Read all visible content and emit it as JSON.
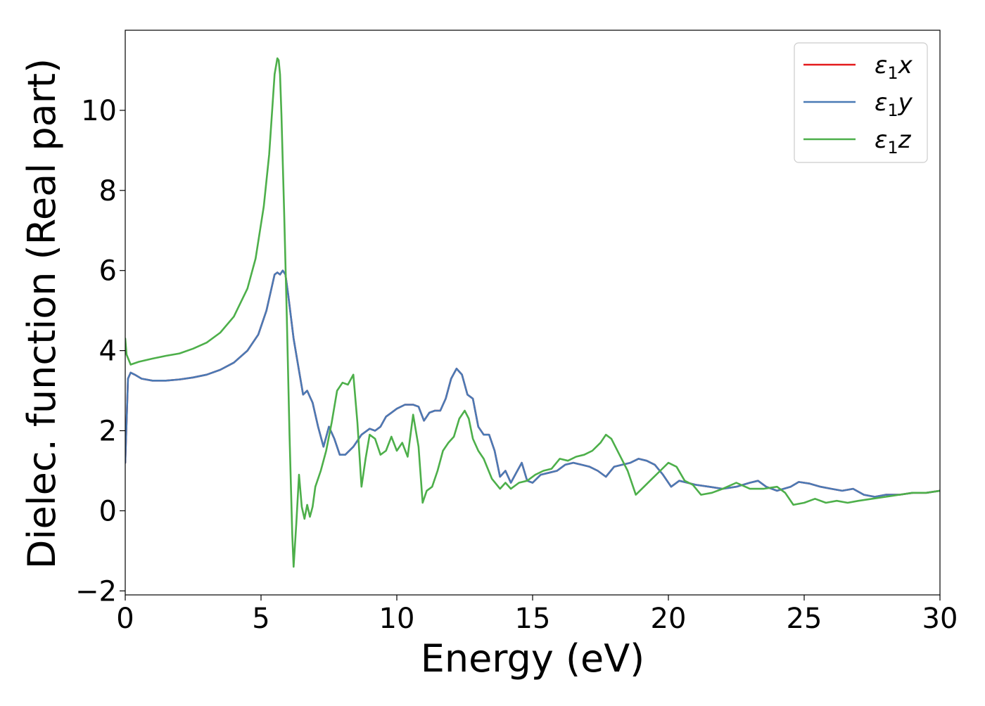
{
  "chart_data": {
    "type": "line",
    "xlabel": "Energy (eV)",
    "ylabel": "Dielec. function (Real part)",
    "xlim": [
      0,
      30
    ],
    "ylim": [
      -2.1,
      12
    ],
    "grid": false,
    "legend_position": "top-right",
    "x_ticks": [
      0,
      5,
      10,
      15,
      20,
      25,
      30
    ],
    "x_tick_labels": [
      "0",
      "5",
      "10",
      "15",
      "20",
      "25",
      "30"
    ],
    "y_ticks": [
      -2,
      0,
      2,
      4,
      6,
      8,
      10
    ],
    "y_tick_labels": [
      "−2",
      "0",
      "2",
      "4",
      "6",
      "8",
      "10"
    ],
    "series": [
      {
        "name": "ε₁x",
        "legend": {
          "base": "ε",
          "sub": "1",
          "suffix": "x"
        },
        "color": "#e41a1c",
        "x": [
          0.0,
          0.1,
          0.2,
          0.35,
          0.6,
          1.0,
          1.5,
          2.0,
          2.5,
          3.0,
          3.5,
          4.0,
          4.5,
          4.9,
          5.2,
          5.5,
          5.6,
          5.7,
          5.8,
          5.9,
          6.0,
          6.2,
          6.4,
          6.55,
          6.7,
          6.9,
          7.1,
          7.3,
          7.5,
          7.7,
          7.9,
          8.1,
          8.4,
          8.7,
          9.0,
          9.2,
          9.4,
          9.6,
          9.8,
          10.0,
          10.3,
          10.6,
          10.8,
          11.0,
          11.2,
          11.4,
          11.6,
          11.8,
          12.0,
          12.2,
          12.4,
          12.6,
          12.8,
          13.0,
          13.2,
          13.4,
          13.6,
          13.8,
          14.0,
          14.2,
          14.4,
          14.6,
          14.8,
          15.0,
          15.3,
          15.6,
          15.9,
          16.2,
          16.5,
          16.8,
          17.1,
          17.4,
          17.7,
          18.0,
          18.3,
          18.6,
          18.9,
          19.2,
          19.5,
          19.8,
          20.1,
          20.4,
          20.7,
          21.0,
          21.5,
          22.0,
          22.5,
          23.0,
          23.3,
          23.6,
          24.0,
          24.5,
          24.8,
          25.2,
          25.6,
          26.0,
          26.4,
          26.8,
          27.2,
          27.6,
          28.0,
          28.5,
          29.0,
          29.5,
          30.0
        ],
        "y": [
          1.2,
          3.3,
          3.45,
          3.4,
          3.3,
          3.25,
          3.25,
          3.28,
          3.33,
          3.4,
          3.52,
          3.7,
          4.0,
          4.4,
          5.0,
          5.9,
          5.95,
          5.9,
          6.0,
          5.9,
          5.4,
          4.3,
          3.5,
          2.9,
          3.0,
          2.7,
          2.1,
          1.6,
          2.1,
          1.8,
          1.4,
          1.4,
          1.6,
          1.9,
          2.05,
          2.0,
          2.1,
          2.35,
          2.45,
          2.55,
          2.65,
          2.65,
          2.6,
          2.25,
          2.45,
          2.5,
          2.5,
          2.8,
          3.3,
          3.55,
          3.4,
          2.9,
          2.8,
          2.1,
          1.9,
          1.9,
          1.5,
          0.85,
          1.0,
          0.7,
          0.95,
          1.2,
          0.75,
          0.7,
          0.9,
          0.95,
          1.0,
          1.15,
          1.2,
          1.15,
          1.1,
          1.0,
          0.85,
          1.1,
          1.15,
          1.2,
          1.3,
          1.25,
          1.15,
          0.9,
          0.6,
          0.75,
          0.7,
          0.65,
          0.6,
          0.55,
          0.6,
          0.7,
          0.75,
          0.6,
          0.5,
          0.6,
          0.72,
          0.68,
          0.6,
          0.55,
          0.5,
          0.55,
          0.4,
          0.35,
          0.4,
          0.4,
          0.45,
          0.45,
          0.5
        ]
      },
      {
        "name": "ε₁y",
        "legend": {
          "base": "ε",
          "sub": "1",
          "suffix": "y"
        },
        "color": "#4a7ab5",
        "x": [
          0.0,
          0.1,
          0.2,
          0.35,
          0.6,
          1.0,
          1.5,
          2.0,
          2.5,
          3.0,
          3.5,
          4.0,
          4.5,
          4.9,
          5.2,
          5.5,
          5.6,
          5.7,
          5.8,
          5.9,
          6.0,
          6.2,
          6.4,
          6.55,
          6.7,
          6.9,
          7.1,
          7.3,
          7.5,
          7.7,
          7.9,
          8.1,
          8.4,
          8.7,
          9.0,
          9.2,
          9.4,
          9.6,
          9.8,
          10.0,
          10.3,
          10.6,
          10.8,
          11.0,
          11.2,
          11.4,
          11.6,
          11.8,
          12.0,
          12.2,
          12.4,
          12.6,
          12.8,
          13.0,
          13.2,
          13.4,
          13.6,
          13.8,
          14.0,
          14.2,
          14.4,
          14.6,
          14.8,
          15.0,
          15.3,
          15.6,
          15.9,
          16.2,
          16.5,
          16.8,
          17.1,
          17.4,
          17.7,
          18.0,
          18.3,
          18.6,
          18.9,
          19.2,
          19.5,
          19.8,
          20.1,
          20.4,
          20.7,
          21.0,
          21.5,
          22.0,
          22.5,
          23.0,
          23.3,
          23.6,
          24.0,
          24.5,
          24.8,
          25.2,
          25.6,
          26.0,
          26.4,
          26.8,
          27.2,
          27.6,
          28.0,
          28.5,
          29.0,
          29.5,
          30.0
        ],
        "y": [
          1.2,
          3.3,
          3.45,
          3.4,
          3.3,
          3.25,
          3.25,
          3.28,
          3.33,
          3.4,
          3.52,
          3.7,
          4.0,
          4.4,
          5.0,
          5.9,
          5.95,
          5.9,
          6.0,
          5.9,
          5.4,
          4.3,
          3.5,
          2.9,
          3.0,
          2.7,
          2.1,
          1.6,
          2.1,
          1.8,
          1.4,
          1.4,
          1.6,
          1.9,
          2.05,
          2.0,
          2.1,
          2.35,
          2.45,
          2.55,
          2.65,
          2.65,
          2.6,
          2.25,
          2.45,
          2.5,
          2.5,
          2.8,
          3.3,
          3.55,
          3.4,
          2.9,
          2.8,
          2.1,
          1.9,
          1.9,
          1.5,
          0.85,
          1.0,
          0.7,
          0.95,
          1.2,
          0.75,
          0.7,
          0.9,
          0.95,
          1.0,
          1.15,
          1.2,
          1.15,
          1.1,
          1.0,
          0.85,
          1.1,
          1.15,
          1.2,
          1.3,
          1.25,
          1.15,
          0.9,
          0.6,
          0.75,
          0.7,
          0.65,
          0.6,
          0.55,
          0.6,
          0.7,
          0.75,
          0.6,
          0.5,
          0.6,
          0.72,
          0.68,
          0.6,
          0.55,
          0.5,
          0.55,
          0.4,
          0.35,
          0.4,
          0.4,
          0.45,
          0.45,
          0.5
        ]
      },
      {
        "name": "ε₁z",
        "legend": {
          "base": "ε",
          "sub": "1",
          "suffix": "z"
        },
        "color": "#4daf4a",
        "x": [
          0.0,
          0.05,
          0.2,
          0.5,
          1.0,
          1.5,
          2.0,
          2.5,
          3.0,
          3.5,
          4.0,
          4.5,
          4.8,
          5.1,
          5.3,
          5.5,
          5.6,
          5.65,
          5.7,
          5.75,
          5.85,
          5.95,
          6.05,
          6.15,
          6.2,
          6.3,
          6.4,
          6.5,
          6.6,
          6.7,
          6.8,
          6.9,
          7.0,
          7.2,
          7.4,
          7.6,
          7.8,
          8.0,
          8.2,
          8.4,
          8.55,
          8.7,
          8.85,
          9.0,
          9.2,
          9.4,
          9.6,
          9.8,
          10.0,
          10.2,
          10.4,
          10.6,
          10.8,
          10.95,
          11.1,
          11.3,
          11.5,
          11.7,
          11.9,
          12.1,
          12.3,
          12.5,
          12.65,
          12.8,
          13.0,
          13.2,
          13.5,
          13.8,
          14.0,
          14.2,
          14.5,
          14.8,
          15.1,
          15.4,
          15.7,
          16.0,
          16.3,
          16.6,
          16.9,
          17.2,
          17.5,
          17.7,
          17.9,
          18.2,
          18.5,
          18.8,
          19.1,
          19.4,
          19.7,
          20.0,
          20.3,
          20.6,
          20.9,
          21.2,
          21.6,
          22.0,
          22.5,
          23.0,
          23.5,
          24.0,
          24.3,
          24.6,
          25.0,
          25.4,
          25.8,
          26.2,
          26.6,
          27.0,
          27.5,
          28.0,
          28.5,
          29.0,
          29.5,
          30.0
        ],
        "y": [
          4.3,
          3.9,
          3.65,
          3.72,
          3.8,
          3.87,
          3.93,
          4.05,
          4.2,
          4.45,
          4.85,
          5.55,
          6.3,
          7.6,
          8.9,
          10.9,
          11.3,
          11.25,
          10.9,
          9.9,
          7.5,
          4.8,
          1.9,
          -0.6,
          -1.4,
          -0.3,
          0.9,
          0.1,
          -0.2,
          0.15,
          -0.15,
          0.1,
          0.6,
          1.0,
          1.5,
          2.2,
          3.0,
          3.2,
          3.15,
          3.4,
          2.2,
          0.6,
          1.3,
          1.9,
          1.8,
          1.4,
          1.5,
          1.85,
          1.5,
          1.7,
          1.35,
          2.4,
          1.6,
          0.2,
          0.5,
          0.6,
          1.0,
          1.5,
          1.7,
          1.85,
          2.3,
          2.5,
          2.3,
          1.8,
          1.5,
          1.3,
          0.8,
          0.55,
          0.7,
          0.55,
          0.7,
          0.75,
          0.9,
          1.0,
          1.05,
          1.3,
          1.25,
          1.35,
          1.4,
          1.5,
          1.7,
          1.9,
          1.8,
          1.4,
          1.0,
          0.4,
          0.6,
          0.8,
          1.0,
          1.2,
          1.1,
          0.75,
          0.65,
          0.4,
          0.45,
          0.55,
          0.7,
          0.55,
          0.55,
          0.6,
          0.45,
          0.15,
          0.2,
          0.3,
          0.2,
          0.25,
          0.2,
          0.25,
          0.3,
          0.35,
          0.4,
          0.45,
          0.45,
          0.5
        ]
      }
    ]
  }
}
